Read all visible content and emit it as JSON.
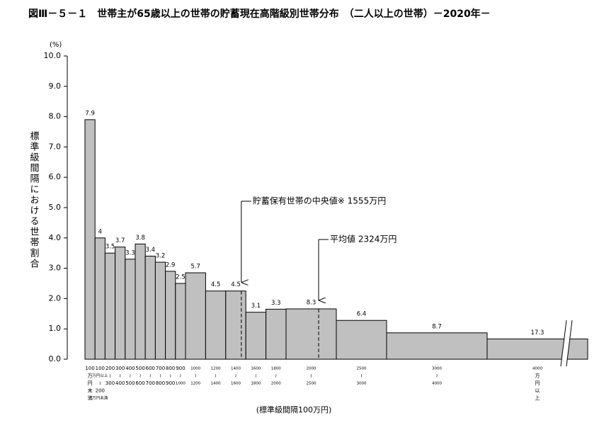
{
  "chart_data": {
    "type": "histogram",
    "title": "図Ⅲ－５－１　世帯主が65歳以上の世帯の貯蓄現在高階級別世帯分布　（二人以上の世帯）－2020年－",
    "y_unit": "(%)",
    "y_label": "標準級間隔における世帯割合",
    "x_label": "(標準級間隔100万円)",
    "bins": [
      0,
      100,
      200,
      300,
      400,
      500,
      600,
      700,
      800,
      900,
      1000,
      1200,
      1400,
      1600,
      1800,
      2000,
      2500,
      3000,
      4000,
      5000
    ],
    "values": [
      7.9,
      4.0,
      3.5,
      3.7,
      3.3,
      3.8,
      3.4,
      3.2,
      2.9,
      2.5,
      2.85,
      2.25,
      2.25,
      1.55,
      1.65,
      1.66,
      1.28,
      0.87,
      0.67
    ],
    "shares": [
      7.9,
      4.0,
      3.5,
      3.7,
      3.3,
      3.8,
      3.4,
      3.2,
      2.9,
      2.5,
      5.7,
      4.5,
      4.5,
      3.1,
      3.3,
      8.3,
      6.4,
      8.7,
      17.3
    ],
    "bin_labels": [
      [
        "100",
        "万",
        "円",
        "未",
        "満"
      ],
      [
        "100",
        "万円以上",
        "≀",
        "200",
        "万円未満"
      ],
      [
        "200",
        "≀",
        "300"
      ],
      [
        "300",
        "≀",
        "400"
      ],
      [
        "400",
        "≀",
        "500"
      ],
      [
        "500",
        "≀",
        "600"
      ],
      [
        "600",
        "≀",
        "700"
      ],
      [
        "700",
        "≀",
        "800"
      ],
      [
        "800",
        "≀",
        "900"
      ],
      [
        "900",
        "≀",
        "1000"
      ],
      [
        "1000",
        "≀",
        "1200"
      ],
      [
        "1200",
        "≀",
        "1400"
      ],
      [
        "1400",
        "≀",
        "1600"
      ],
      [
        "1600",
        "≀",
        "1800"
      ],
      [
        "1800",
        "≀",
        "2000"
      ],
      [
        "2000",
        "≀",
        "2500"
      ],
      [
        "2500",
        "≀",
        "3000"
      ],
      [
        "3000",
        "≀",
        "4000"
      ],
      [
        "4000",
        "万",
        "円",
        "以",
        "上"
      ]
    ],
    "color": "#c0c0c0",
    "xlim": [
      0,
      5000
    ],
    "ylim": [
      0,
      10
    ],
    "yticks": [
      {
        "value": 0,
        "label": "0.0"
      },
      {
        "value": 1,
        "label": "1.0"
      },
      {
        "value": 2,
        "label": "2.0"
      },
      {
        "value": 3,
        "label": "3.0"
      },
      {
        "value": 4,
        "label": "4.0"
      },
      {
        "value": 5,
        "label": "5.0"
      },
      {
        "value": 6,
        "label": "6.0"
      },
      {
        "value": 7,
        "label": "7.0"
      },
      {
        "value": 8,
        "label": "8.0"
      },
      {
        "value": 9,
        "label": "9.0"
      },
      {
        "value": 10,
        "label": "10.0"
      }
    ],
    "annotations": [
      {
        "text": "貯蓄保有世帯の中央値※ 1555万円",
        "x": 1555
      },
      {
        "text": "平均値 2324万円",
        "x": 2324
      }
    ]
  }
}
